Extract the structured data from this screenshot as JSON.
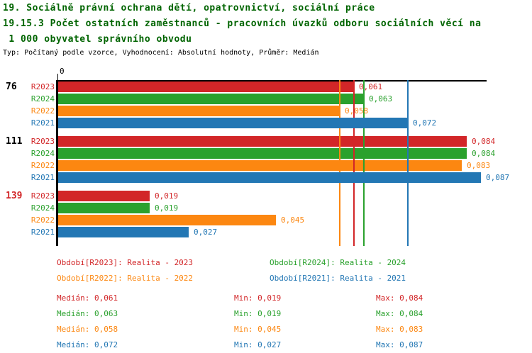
{
  "header": {
    "title_line1": "19. Sociálně právní ochrana dětí, opatrovnictví, sociální práce",
    "title_line2": "19.15.3 Počet ostatních zaměstnanců - pracovních úvazků odboru sociálních věcí na",
    "title_line3": " 1 000 obyvatel správního obvodu",
    "subtitle": "Typ: Počítaný podle vzorce, Vyhodnocení: Absolutní hodnoty, Průměr: Medián"
  },
  "colors": {
    "title": "#006400",
    "axis": "#000000",
    "r2023_red": "#d22628",
    "r2024_green": "#2aa12d",
    "r2022_orange": "#fc8711",
    "r2021_blue": "#2377b4"
  },
  "chart_data": {
    "type": "bar",
    "orientation": "horizontal",
    "title": "19.15.3 Počet ostatních zaměstnanců - pracovních úvazků odboru sociálních věcí na 1 000 obyvatel správního obvodu",
    "xlabel": "",
    "ylabel": "",
    "xlim": [
      0,
      0.088
    ],
    "grid": false,
    "axis_origin_tick_label": "0",
    "legend_position": "bottom",
    "groups": [
      {
        "label": "76",
        "color": "#000000"
      },
      {
        "label": "111",
        "color": "#000000"
      },
      {
        "label": "139",
        "color": "#d22628"
      }
    ],
    "series": [
      {
        "name": "R2023",
        "color": "#d22628",
        "legend_label": "Období[R2023]: Realita - 2023",
        "values": [
          0.061,
          0.084,
          0.019
        ],
        "display_values": [
          "0,061",
          "0,084",
          "0,019"
        ],
        "median": 0.061,
        "median_label": "Medián: 0,061",
        "min_label": "Min: 0,019",
        "max_label": "Max: 0,084"
      },
      {
        "name": "R2024",
        "color": "#2aa12d",
        "legend_label": "Období[R2024]: Realita - 2024",
        "values": [
          0.063,
          0.084,
          0.019
        ],
        "display_values": [
          "0,063",
          "0,084",
          "0,019"
        ],
        "median": 0.063,
        "median_label": "Medián: 0,063",
        "min_label": "Min: 0,019",
        "max_label": "Max: 0,084"
      },
      {
        "name": "R2022",
        "color": "#fc8711",
        "legend_label": "Období[R2022]: Realita - 2022",
        "values": [
          0.058,
          0.083,
          0.045
        ],
        "display_values": [
          "0,058",
          "0,083",
          "0,045"
        ],
        "median": 0.058,
        "median_label": "Medián: 0,058",
        "min_label": "Min: 0,045",
        "max_label": "Max: 0,083"
      },
      {
        "name": "R2021",
        "color": "#2377b4",
        "legend_label": "Období[R2021]: Realita - 2021",
        "values": [
          0.072,
          0.087,
          0.027
        ],
        "display_values": [
          "0,072",
          "0,087",
          "0,027"
        ],
        "median": 0.072,
        "median_label": "Medián: 0,072",
        "min_label": "Min: 0,027",
        "max_label": "Max: 0,087"
      }
    ]
  }
}
